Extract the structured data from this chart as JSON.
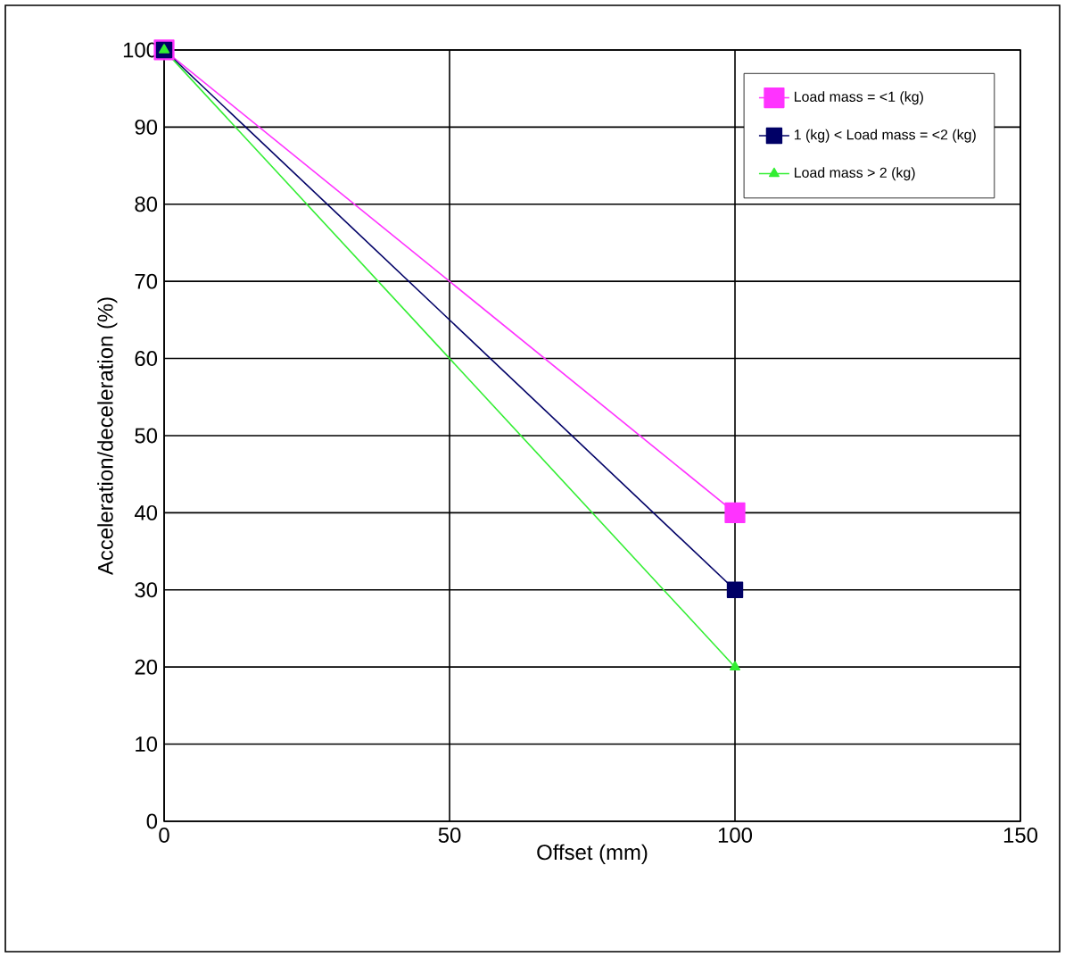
{
  "chart_data": {
    "type": "line",
    "xlabel": "Offset (mm)",
    "ylabel": "Acceleration/deceleration (%)",
    "xlim": [
      0,
      150
    ],
    "xticks": [
      0,
      50,
      100,
      150
    ],
    "ylim": [
      0,
      100
    ],
    "yticks": [
      0,
      10,
      20,
      30,
      40,
      50,
      60,
      70,
      80,
      90,
      100
    ],
    "grid": true,
    "legend": "top right",
    "x": [
      0,
      100
    ],
    "series": [
      {
        "name": "Load mass = <1 (kg)",
        "color": "#ff33ff",
        "values": [
          100,
          40
        ],
        "marker": "square"
      },
      {
        "name": "1 (kg) < Load mass = <2 (kg)",
        "color": "#000066",
        "values": [
          100,
          30
        ],
        "marker": "square"
      },
      {
        "name": "Load mass > 2 (kg)",
        "color": "#33ee33",
        "values": [
          100,
          20
        ],
        "marker": "triangle"
      }
    ]
  }
}
